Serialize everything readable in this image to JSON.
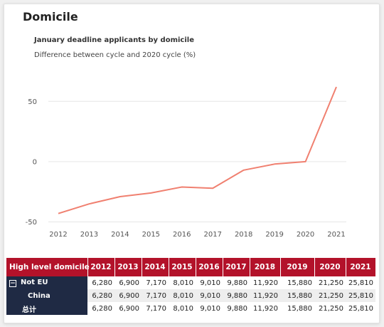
{
  "section_title": "Domicile",
  "chart_data": {
    "type": "line",
    "title": "January deadline applicants by domicile",
    "subtitle": "Difference between cycle and 2020 cycle (%)",
    "x": [
      "2012",
      "2013",
      "2014",
      "2015",
      "2016",
      "2017",
      "2018",
      "2019",
      "2020",
      "2021"
    ],
    "series": [
      {
        "values": [
          -43,
          -35,
          -29,
          -26,
          -21,
          -22,
          -7,
          -2,
          0,
          62
        ]
      }
    ],
    "ylim": [
      -55,
      75
    ],
    "yticks": [
      50,
      0,
      -50
    ],
    "ytick_labels": [
      "50",
      "0",
      "-50"
    ],
    "grid": true,
    "line_color": "#f08070"
  },
  "table": {
    "header_first": "High level domicile",
    "years": [
      "2012",
      "2013",
      "2014",
      "2015",
      "2016",
      "2017",
      "2018",
      "2019",
      "2020",
      "2021"
    ],
    "expand_glyph": "⊟",
    "rows": [
      {
        "label": "Not EU",
        "values": [
          "6,280",
          "6,900",
          "7,170",
          "8,010",
          "9,010",
          "9,880",
          "11,920",
          "15,880",
          "21,250",
          "25,810"
        ]
      },
      {
        "label": "China",
        "values": [
          "6,280",
          "6,900",
          "7,170",
          "8,010",
          "9,010",
          "9,880",
          "11,920",
          "15,880",
          "21,250",
          "25,810"
        ]
      },
      {
        "label": "总计",
        "values": [
          "6,280",
          "6,900",
          "7,170",
          "8,010",
          "9,010",
          "9,880",
          "11,920",
          "15,880",
          "21,250",
          "25,810"
        ]
      }
    ],
    "header_color": "#b3122a",
    "label_color": "#1f2a44"
  }
}
